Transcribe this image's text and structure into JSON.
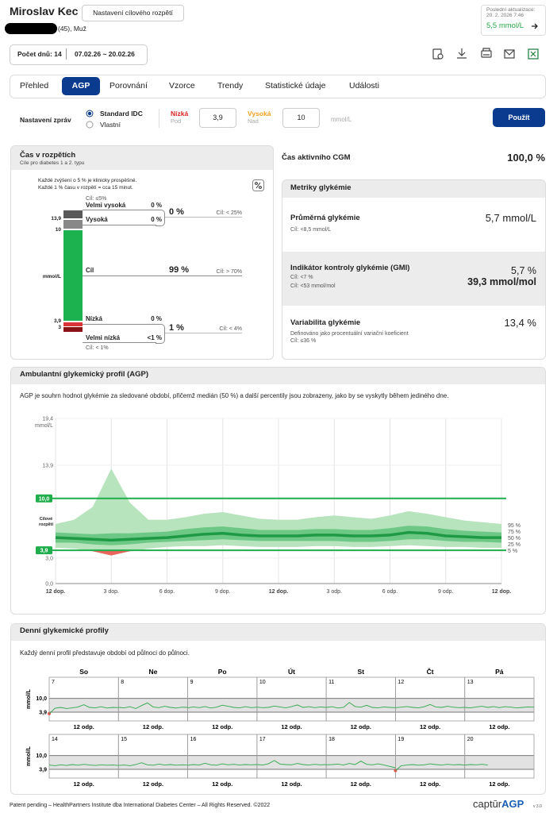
{
  "header": {
    "name": "Miroslav Kec",
    "target_range_button": "Nastavení cílového rozpětí",
    "patient_info": "(45), Muž",
    "last_update_label": "Poslední aktualizace:",
    "last_update_time": "20. 2. 2026 7:46",
    "last_glucose": "5,5 mmol/L",
    "days_count": "Počet dnů: 14",
    "date_range": "07.02.26 ~ 20.02.26"
  },
  "tabs": [
    "Přehled",
    "AGP",
    "Porovnání",
    "Vzorce",
    "Trendy",
    "Statistické údaje",
    "Události"
  ],
  "active_tab": 1,
  "report_settings": {
    "label": "Nastavení zpráv",
    "options": [
      "Standard IDC",
      "Vlastní"
    ],
    "low_label": "Nízká",
    "low_sub": "Pod",
    "low_value": "3,9",
    "high_label": "Vysoká",
    "high_sub": "Nad",
    "high_value": "10",
    "unit": "mmol/L",
    "apply_button": "Použít"
  },
  "time_in_ranges": {
    "title": "Čas v rozpětích",
    "subtitle": "Cíle pro diabetes 1 a 2. typu",
    "notes": [
      "Každé zvýšení o 5 % je klinicky prospěšné.",
      "Každé 1 % času v rozpětí = cca 15 minut."
    ],
    "scale_labels": [
      "13,9",
      "10",
      "mmol/L",
      "3,9",
      "3"
    ],
    "very_high": {
      "label": "Velmi vysoká",
      "value": "0 %",
      "goal": "Cíl: ≤5%"
    },
    "high": {
      "label": "Vysoká",
      "value": "0 %"
    },
    "high_total": {
      "value": "0 %",
      "goal": "Cíl: < 25%"
    },
    "target": {
      "label": "Cíl",
      "value": "99 %",
      "goal": "Cíl: > 70%"
    },
    "low": {
      "label": "Nízká",
      "value": "0 %"
    },
    "very_low": {
      "label": "Velmi nízká",
      "value": "<1 %",
      "goal": "Cíl: < 1%"
    },
    "low_total": {
      "value": "1 %",
      "goal": "Cíl: < 4%"
    }
  },
  "cgm_active": {
    "label": "Čas aktivního CGM",
    "value": "100,0 %"
  },
  "metrics": {
    "title": "Metriky glykémie",
    "rows": [
      {
        "label": "Průměrná glykémie",
        "goals": [
          "Cíl: <8,5 mmol/L"
        ],
        "values": [
          "5,7 mmol/L"
        ]
      },
      {
        "label": "Indikátor kontroly glykémie (GMI)",
        "goals": [
          "Cíl: <7 %",
          "Cíl: <53 mmol/mol"
        ],
        "values": [
          "5,7 %",
          "39,3 mmol/mol"
        ]
      },
      {
        "label": "Variabilita glykémie",
        "description": "Definováno jako procentuální variační koeficient",
        "goals": [
          "Cíl: ≤36 %"
        ],
        "values": [
          "13,4 %"
        ]
      }
    ]
  },
  "agp": {
    "title": "Ambulantní glykemický profil (AGP)",
    "description": "AGP je souhrn hodnot glykémie za sledované období, přičemž medián (50 %) a další percentily jsou zobrazeny, jako by se vyskytly během jediného dne.",
    "y_label": "mmol/L",
    "target_label": "Cílové rozpětí",
    "xlim": [
      0,
      24
    ],
    "ylim": [
      0,
      19.4
    ],
    "xticks": [
      {
        "value": 0,
        "label": "12 dop."
      },
      {
        "value": 3,
        "label": "3 dop."
      },
      {
        "value": 6,
        "label": "6 dop."
      },
      {
        "value": 9,
        "label": "9 dop."
      },
      {
        "value": 12,
        "label": "12 dop."
      },
      {
        "value": 15,
        "label": "3 odp."
      },
      {
        "value": 18,
        "label": "6 odp."
      },
      {
        "value": 21,
        "label": "9 odp."
      },
      {
        "value": 24,
        "label": "12 dop."
      }
    ],
    "yticks": [
      {
        "value": 0,
        "label": "0,0"
      },
      {
        "value": 3,
        "label": "3,0"
      },
      {
        "value": 3.9,
        "label": "3,9"
      },
      {
        "value": 10,
        "label": "10,0"
      },
      {
        "value": 13.9,
        "label": "13,9"
      },
      {
        "value": 19.4,
        "label": "19,4"
      }
    ],
    "target_range": [
      3.9,
      10
    ],
    "target_color": "#1fae4b",
    "below_color": "#e8665c",
    "x": [
      0,
      1,
      2,
      3,
      4,
      5,
      6,
      7,
      8,
      9,
      10,
      11,
      12,
      13,
      14,
      15,
      16,
      17,
      18,
      19,
      20,
      21,
      22,
      23,
      24
    ],
    "series": [
      {
        "name": "95 %",
        "color": "#b7e3bd",
        "values": [
          7.0,
          7.5,
          9.0,
          13.5,
          9.5,
          7.5,
          7.5,
          7.8,
          8.2,
          8.4,
          8.0,
          7.6,
          7.5,
          7.5,
          7.8,
          8.0,
          7.8,
          7.6,
          8.0,
          8.5,
          8.2,
          7.8,
          7.4,
          7.2,
          7.0
        ]
      },
      {
        "name": "75 %",
        "color": "#6cc884",
        "values": [
          6.0,
          5.9,
          5.8,
          5.9,
          5.9,
          6.0,
          6.1,
          6.4,
          6.6,
          6.7,
          6.5,
          6.3,
          6.3,
          6.3,
          6.4,
          6.4,
          6.3,
          6.3,
          6.5,
          6.8,
          6.7,
          6.4,
          6.2,
          6.1,
          6.0
        ]
      },
      {
        "name": "50 %",
        "color": "#1e9a44",
        "values": [
          5.4,
          5.3,
          5.2,
          5.1,
          5.2,
          5.3,
          5.4,
          5.6,
          5.8,
          5.9,
          5.7,
          5.6,
          5.6,
          5.6,
          5.7,
          5.7,
          5.6,
          5.6,
          5.7,
          6.0,
          5.9,
          5.6,
          5.5,
          5.4,
          5.4
        ]
      },
      {
        "name": "25 %",
        "color": "#6cc884",
        "values": [
          4.8,
          4.8,
          4.6,
          4.5,
          4.6,
          4.8,
          4.9,
          5.0,
          5.1,
          5.2,
          5.1,
          5.0,
          5.0,
          5.0,
          5.0,
          5.0,
          4.9,
          4.9,
          5.0,
          5.2,
          5.2,
          5.0,
          4.9,
          4.9,
          4.8
        ]
      },
      {
        "name": "5 %",
        "color": "#b7e3bd",
        "values": [
          4.2,
          4.1,
          3.8,
          3.3,
          3.8,
          4.1,
          4.3,
          4.4,
          4.4,
          4.5,
          4.4,
          4.3,
          4.3,
          4.3,
          4.4,
          4.4,
          4.3,
          4.3,
          4.4,
          4.5,
          4.4,
          4.3,
          4.3,
          4.2,
          4.2
        ]
      }
    ]
  },
  "daily": {
    "title": "Denní glykemické profily",
    "description": "Každý denní profil představuje období od půlnoci do půlnoci.",
    "weekdays": [
      "So",
      "Ne",
      "Po",
      "Út",
      "St",
      "Čt",
      "Pá"
    ],
    "y_label": "mmol/L",
    "ylim": [
      0,
      19.4
    ],
    "yticks": [
      {
        "value": 10,
        "label": "10,0"
      },
      {
        "value": 3.9,
        "label": "3,9"
      }
    ],
    "x_label": "12 odp.",
    "xlim": [
      0,
      24
    ],
    "color": "#2da84a",
    "below_color": "#e8574f",
    "x": [
      0,
      2,
      4,
      6,
      8,
      10,
      12,
      14,
      16,
      18,
      20,
      22,
      24
    ],
    "days": [
      {
        "label": "7",
        "values": [
          3.2,
          5.6,
          6.0,
          5.5,
          5.8,
          6.2,
          7.2,
          6.0,
          5.8,
          6.3,
          5.7,
          6.0,
          5.9
        ]
      },
      {
        "label": "8",
        "values": [
          6.0,
          5.8,
          6.3,
          5.5,
          6.8,
          8.0,
          6.2,
          5.9,
          6.5,
          6.0,
          5.7,
          6.1,
          6.0
        ]
      },
      {
        "label": "9",
        "values": [
          5.8,
          6.2,
          5.9,
          6.4,
          5.7,
          6.1,
          7.0,
          6.5,
          6.0,
          5.8,
          6.3,
          5.9,
          6.1
        ]
      },
      {
        "label": "10",
        "values": [
          6.1,
          5.9,
          6.0,
          6.6,
          6.2,
          5.8,
          6.4,
          7.1,
          6.0,
          6.3,
          5.9,
          6.2,
          6.0
        ]
      },
      {
        "label": "11",
        "values": [
          6.0,
          6.3,
          5.7,
          6.0,
          8.2,
          6.4,
          6.1,
          6.9,
          6.0,
          5.8,
          6.2,
          6.0,
          5.9
        ]
      },
      {
        "label": "12",
        "values": [
          5.9,
          6.1,
          6.4,
          6.0,
          5.8,
          6.3,
          7.3,
          6.2,
          6.0,
          6.5,
          6.1,
          5.9,
          6.0
        ]
      },
      {
        "label": "13",
        "values": [
          6.0,
          5.8,
          6.2,
          6.5,
          6.0,
          6.4,
          5.9,
          6.3,
          6.1,
          5.8,
          6.0,
          6.2,
          6.1
        ]
      },
      {
        "label": "14",
        "values": [
          5.8,
          5.5,
          5.9,
          5.6,
          6.0,
          5.7,
          6.1,
          5.8,
          5.6,
          5.9,
          5.7,
          5.8,
          5.6
        ]
      },
      {
        "label": "15",
        "values": [
          5.6,
          5.8,
          5.5,
          6.0,
          6.8,
          5.9,
          5.7,
          6.2,
          5.8,
          6.0,
          5.7,
          5.9,
          5.8
        ]
      },
      {
        "label": "16",
        "values": [
          5.7,
          6.0,
          5.8,
          6.6,
          5.9,
          5.7,
          6.3,
          5.9,
          6.1,
          5.8,
          6.0,
          5.9,
          6.0
        ]
      },
      {
        "label": "17",
        "values": [
          6.0,
          5.8,
          6.4,
          7.8,
          6.2,
          6.0,
          5.9,
          6.5,
          6.0,
          5.8,
          6.1,
          5.9,
          6.0
        ]
      },
      {
        "label": "18",
        "values": [
          5.9,
          6.0,
          6.2,
          5.8,
          6.5,
          6.0,
          7.5,
          6.1,
          5.9,
          6.3,
          5.8,
          5.2,
          4.6
        ]
      },
      {
        "label": "19",
        "values": [
          3.3,
          5.5,
          5.8,
          6.0,
          5.7,
          5.9,
          6.3,
          6.0,
          5.8,
          6.1,
          5.9,
          6.0,
          5.8
        ]
      },
      {
        "label": "20",
        "values": [
          5.8,
          6.0,
          5.9,
          6.1,
          5.8,
          null,
          null,
          null,
          null,
          null,
          null,
          null,
          null
        ]
      }
    ]
  },
  "footer": {
    "text": "Patent pending – HealthPartners Institute dba International Diabetes Center – All Rights Reserved. ©2022",
    "logo_a": "captūr",
    "logo_b": "AGP",
    "version": "v 3.0"
  }
}
